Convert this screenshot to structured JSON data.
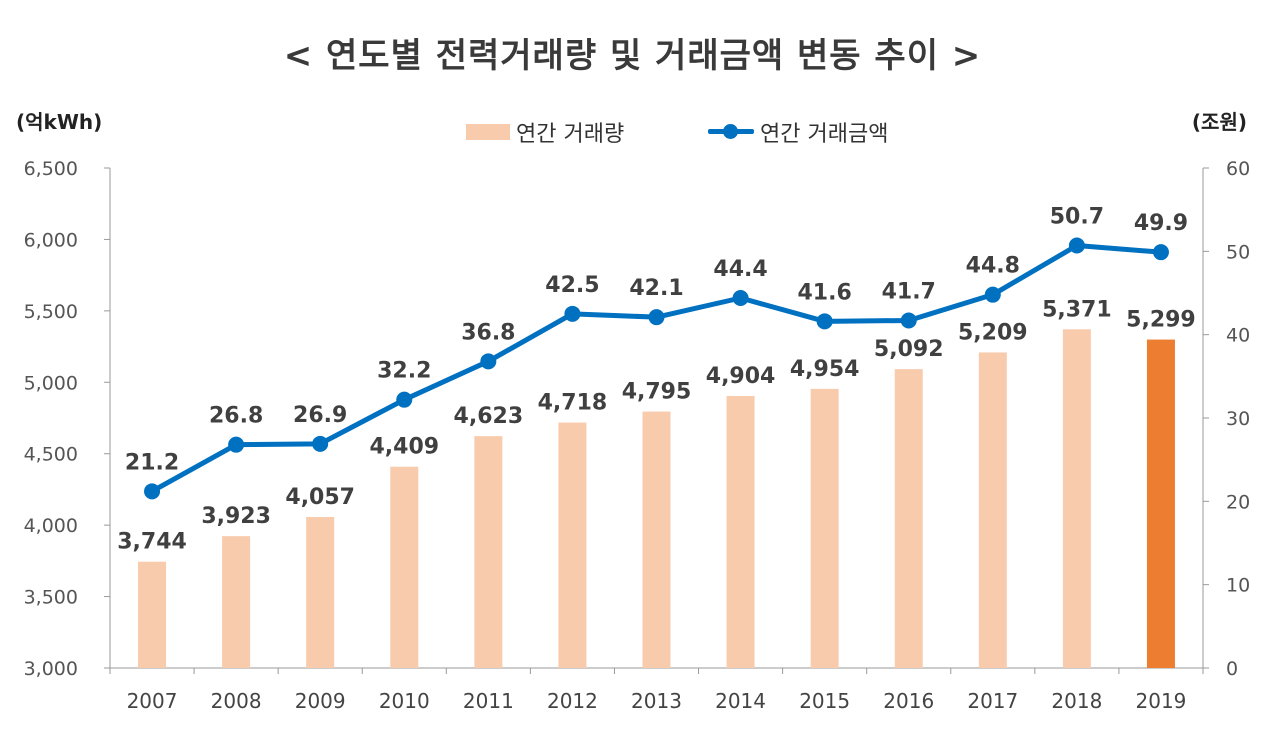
{
  "chart_data": {
    "type": "bar+line",
    "title": "< 연도별 전력거래량 및 거래금액 변동 추이 >",
    "left_unit": "(억kWh)",
    "right_unit": "(조원)",
    "categories": [
      "2007",
      "2008",
      "2009",
      "2010",
      "2011",
      "2012",
      "2013",
      "2014",
      "2015",
      "2016",
      "2017",
      "2018",
      "2019"
    ],
    "series": [
      {
        "name": "연간 거래량",
        "type": "bar",
        "axis": "left",
        "values": [
          3744,
          3923,
          4057,
          4409,
          4623,
          4718,
          4795,
          4904,
          4954,
          5092,
          5209,
          5371,
          5299
        ],
        "labels": [
          "3,744",
          "3,923",
          "4,057",
          "4,409",
          "4,623",
          "4,718",
          "4,795",
          "4,904",
          "4,954",
          "5,092",
          "5,209",
          "5,371",
          "5,299"
        ],
        "color": "#f8cbad",
        "highlight_color": "#ed7d31",
        "highlight_index": 12
      },
      {
        "name": "연간 거래금액",
        "type": "line",
        "axis": "right",
        "values": [
          21.2,
          26.8,
          26.9,
          32.2,
          36.8,
          42.5,
          42.1,
          44.4,
          41.6,
          41.7,
          44.8,
          50.7,
          49.9
        ],
        "labels": [
          "21.2",
          "26.8",
          "26.9",
          "32.2",
          "36.8",
          "42.5",
          "42.1",
          "44.4",
          "41.6",
          "41.7",
          "44.8",
          "50.7",
          "49.9"
        ],
        "color": "#0070c0"
      }
    ],
    "y_left": {
      "min": 3000,
      "max": 6500,
      "step": 500,
      "ticks": [
        "3,000",
        "3,500",
        "4,000",
        "4,500",
        "5,000",
        "5,500",
        "6,000",
        "6,500"
      ]
    },
    "y_right": {
      "min": 0,
      "max": 60,
      "step": 10,
      "ticks": [
        "0",
        "10",
        "20",
        "30",
        "40",
        "50",
        "60"
      ]
    },
    "grid": false,
    "legend_position": "top-center"
  }
}
